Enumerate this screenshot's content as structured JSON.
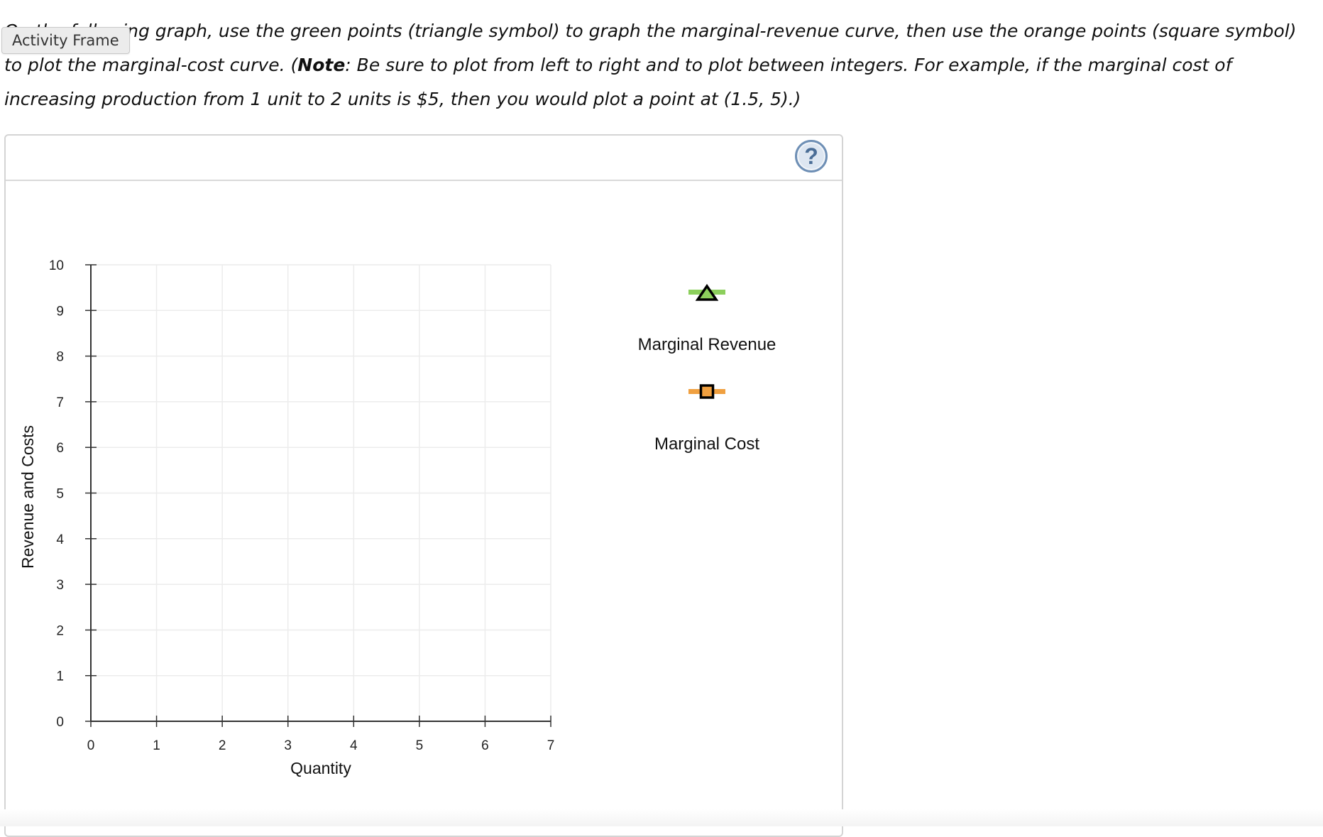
{
  "instructions": {
    "part1": "On the following graph, use the green points (triangle symbol) to graph the marginal-revenue curve, then use the orange points (square symbol) to plot the marginal-cost curve. (",
    "note_label": "Note",
    "part2": ": Be sure to plot from left to right and to plot between integers. For example, if the marginal cost of increasing production from 1 unit to 2 units is $5, then you would plot a point at (1.5, 5).)"
  },
  "activity_frame_label": "Activity Frame",
  "help_button": {
    "label": "?",
    "icon": "help-icon"
  },
  "colors": {
    "marginal_revenue": "#8ccf5c",
    "marginal_cost": "#f0a040",
    "grid": "#ececec",
    "axis": "#333333",
    "help": "#6e8fb5"
  },
  "legend": [
    {
      "label": "Marginal Revenue",
      "icon": "triangle-marker-icon",
      "color": "#8ccf5c"
    },
    {
      "label": "Marginal Cost",
      "icon": "square-marker-icon",
      "color": "#f0a040"
    }
  ],
  "chart_data": {
    "type": "scatter",
    "title": "",
    "xlabel": "Quantity",
    "ylabel": "Revenue and Costs",
    "xlim": [
      0,
      7
    ],
    "ylim": [
      0,
      10
    ],
    "x_ticks": [
      "0",
      "1",
      "2",
      "3",
      "4",
      "5",
      "6",
      "7"
    ],
    "y_ticks": [
      "0",
      "1",
      "2",
      "3",
      "4",
      "5",
      "6",
      "7",
      "8",
      "9",
      "10"
    ],
    "grid": true,
    "legend_position": "right",
    "series": [
      {
        "name": "Marginal Revenue",
        "marker": "triangle",
        "color": "#8ccf5c",
        "points": []
      },
      {
        "name": "Marginal Cost",
        "marker": "square",
        "color": "#f0a040",
        "points": []
      }
    ]
  }
}
